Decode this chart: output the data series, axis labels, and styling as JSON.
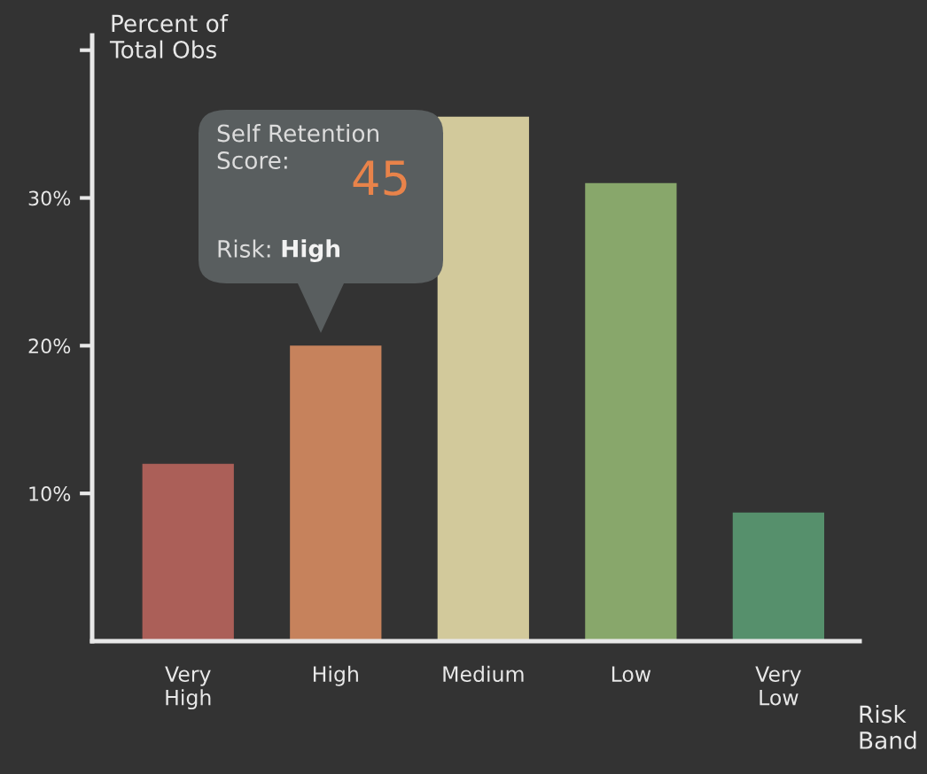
{
  "chart_data": {
    "type": "bar",
    "ylabel": "Percent of\nTotal Obs",
    "xlabel": "Risk\nBand",
    "categories": [
      "Very\nHigh",
      "High",
      "Medium",
      "Low",
      "Very\nLow"
    ],
    "values": [
      12,
      20,
      35.5,
      31,
      8.7
    ],
    "colors": [
      "#ab5f58",
      "#c6825c",
      "#d2c99b",
      "#88a76b",
      "#56906c"
    ],
    "ylim": [
      0,
      41
    ],
    "yticks": [
      {
        "value": 10,
        "label": "10%"
      },
      {
        "value": 20,
        "label": "20%"
      },
      {
        "value": 30,
        "label": "30%"
      },
      {
        "value": 40,
        "label": null
      }
    ],
    "annotations": [
      "Self Retention\nScore:",
      "45",
      "Risk:",
      "High"
    ],
    "grid": false,
    "legend": false
  }
}
